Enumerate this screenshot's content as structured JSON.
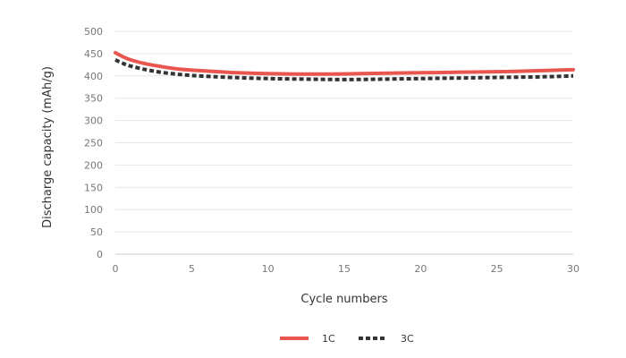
{
  "chart_data": {
    "type": "line",
    "title": "",
    "xlabel": "Cycle numbers",
    "ylabel": "Discharge capacity (mAh/g)",
    "xlim": [
      0,
      30
    ],
    "ylim": [
      0,
      500
    ],
    "xticks": [
      0,
      5,
      10,
      15,
      20,
      25,
      30
    ],
    "yticks": [
      0,
      50,
      100,
      150,
      200,
      250,
      300,
      350,
      400,
      450,
      500
    ],
    "grid": "horizontal",
    "legend_position": "bottom",
    "series": [
      {
        "name": "1C",
        "color": "#e8564f",
        "style": "solid",
        "x": [
          0,
          0.5,
          1,
          2,
          3,
          4,
          5,
          6,
          8,
          10,
          12,
          14,
          16,
          18,
          20,
          22,
          24,
          26,
          28,
          30
        ],
        "values": [
          452,
          443,
          436,
          427,
          421,
          416,
          413,
          411,
          407,
          405,
          404,
          404,
          405,
          406,
          407,
          408,
          409,
          410,
          412,
          414
        ]
      },
      {
        "name": "3C",
        "color": "#333333",
        "style": "dashed",
        "x": [
          0,
          0.5,
          1,
          2,
          3,
          4,
          5,
          6,
          8,
          10,
          12,
          14,
          16,
          18,
          20,
          22,
          24,
          26,
          28,
          30
        ],
        "values": [
          436,
          428,
          422,
          414,
          408,
          404,
          401,
          399,
          396,
          394,
          393,
          392,
          392,
          393,
          394,
          395,
          396,
          397,
          398,
          400
        ]
      }
    ]
  }
}
